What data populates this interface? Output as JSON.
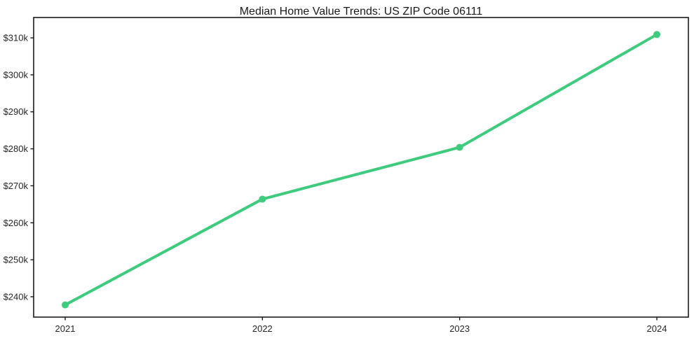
{
  "chart_data": {
    "type": "line",
    "title": "Median Home Value Trends: US ZIP Code 06111",
    "categories": [
      "2021",
      "2022",
      "2023",
      "2024"
    ],
    "values": [
      237800,
      266400,
      280400,
      310900
    ],
    "y_ticks": [
      {
        "value": 240000,
        "label": "$240k"
      },
      {
        "value": 250000,
        "label": "$250k"
      },
      {
        "value": 260000,
        "label": "$260k"
      },
      {
        "value": 270000,
        "label": "$270k"
      },
      {
        "value": 280000,
        "label": "$280k"
      },
      {
        "value": 290000,
        "label": "$290k"
      },
      {
        "value": 300000,
        "label": "$300k"
      },
      {
        "value": 310000,
        "label": "$310k"
      }
    ],
    "ylim": [
      234500,
      315500
    ],
    "xlabel": "",
    "ylabel": "",
    "grid": false,
    "legend": "none",
    "line_color": "#3ecb7d",
    "marker": "circle",
    "marker_radius": 5,
    "line_width": 4,
    "axis_color": "#1a1a1a",
    "tick_text_color": "#262626",
    "background_color": "#ffffff"
  }
}
